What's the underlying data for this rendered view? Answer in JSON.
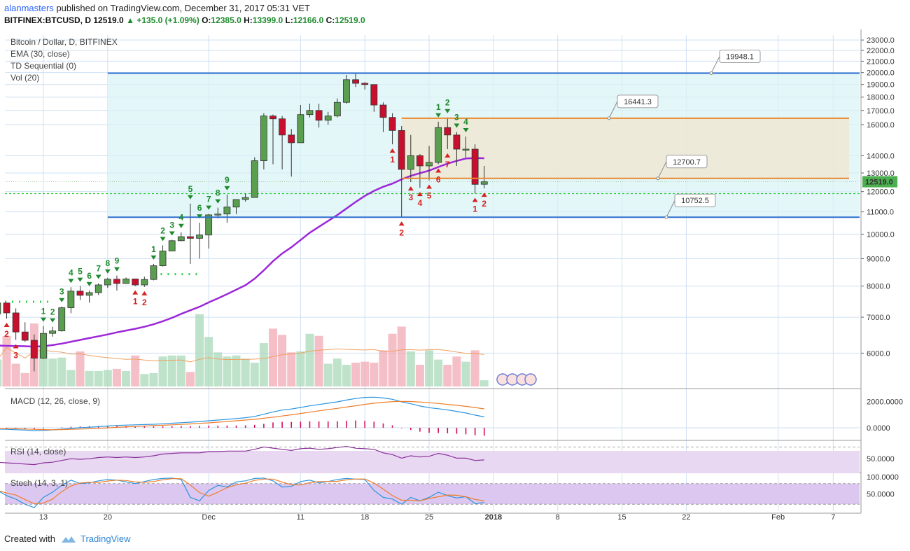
{
  "header": {
    "user": "alanmasters",
    "published_text": "published on TradingView.com, December 31, 2017 05:31 VET",
    "symbol": "BITFINEX:BTCUSD, D",
    "last": "12519.0",
    "change": "+135.0 (+1.09%)",
    "o_label": "O:",
    "o": "12385.0",
    "h_label": "H:",
    "h": "13399.0",
    "l_label": "L:",
    "l": "12166.0",
    "c_label": "C:",
    "c": "12519.0"
  },
  "legend": {
    "title": "Bitcoin / Dollar, D, BITFINEX",
    "ema": "EMA (30, close)",
    "td": "TD Sequential (0)",
    "vol": "Vol (20)"
  },
  "panes": {
    "macd": "MACD (12, 26, close, 9)",
    "rsi": "RSI (14, close)",
    "stoch": "Stoch (14, 3, 1)"
  },
  "footer": {
    "created_with": "Created with",
    "brand": "TradingView"
  },
  "colors": {
    "up": "#5a9e4f",
    "down": "#c8102e",
    "ema": "#9c27d9",
    "hline_blue": "#2f6fcf",
    "hline_orange": "#e8892f",
    "td_green": "#1e8a2e",
    "td_red": "#d62020",
    "macd": "#2a95e0",
    "signal": "#ef7d2a"
  },
  "chart_data": {
    "type": "candlestick",
    "symbol": "BITFINEX:BTCUSD",
    "timeframe": "D",
    "y_axis_scale": "log",
    "ylim": [
      5200,
      23500
    ],
    "y_ticks": [
      "23000.0",
      "22000.0",
      "21000.0",
      "20000.0",
      "19000.0",
      "18000.0",
      "17000.0",
      "16000.0",
      "14000.0",
      "13000.0",
      "12000.0",
      "11000.0",
      "10000.0",
      "9000.0",
      "8000.0",
      "7000.0",
      "6000.0"
    ],
    "last_price_label": "12519.0",
    "x_ticks": [
      "13",
      "20",
      "Dec",
      "11",
      "18",
      "25",
      "2018",
      "8",
      "15",
      "22",
      "Feb",
      "7"
    ],
    "x_tick_dates": [
      "2017-11-13",
      "2017-11-20",
      "2017-12-01",
      "2017-12-11",
      "2017-12-18",
      "2017-12-25",
      "2018-01-01",
      "2018-01-08",
      "2018-01-15",
      "2018-01-22",
      "2018-02-01",
      "2018-02-07"
    ],
    "candles": [
      {
        "date": "2017-11-08",
        "o": 7100,
        "h": 7900,
        "l": 7020,
        "c": 7440
      },
      {
        "date": "2017-11-09",
        "o": 7440,
        "h": 7450,
        "l": 6960,
        "c": 7130
      },
      {
        "date": "2017-11-10",
        "o": 7130,
        "h": 7270,
        "l": 6350,
        "c": 6570
      },
      {
        "date": "2017-11-11",
        "o": 6570,
        "h": 6850,
        "l": 6300,
        "c": 6340
      },
      {
        "date": "2017-11-12",
        "o": 6340,
        "h": 6500,
        "l": 5550,
        "c": 5870
      },
      {
        "date": "2017-11-13",
        "o": 5870,
        "h": 6740,
        "l": 5850,
        "c": 6530
      },
      {
        "date": "2017-11-14",
        "o": 6530,
        "h": 6720,
        "l": 6440,
        "c": 6600
      },
      {
        "date": "2017-11-15",
        "o": 6600,
        "h": 7330,
        "l": 6580,
        "c": 7290
      },
      {
        "date": "2017-11-16",
        "o": 7290,
        "h": 7960,
        "l": 7120,
        "c": 7830
      },
      {
        "date": "2017-11-17",
        "o": 7830,
        "h": 8000,
        "l": 7540,
        "c": 7690
      },
      {
        "date": "2017-11-18",
        "o": 7690,
        "h": 7850,
        "l": 7450,
        "c": 7780
      },
      {
        "date": "2017-11-19",
        "o": 7780,
        "h": 8100,
        "l": 7700,
        "c": 8040
      },
      {
        "date": "2017-11-20",
        "o": 8040,
        "h": 8290,
        "l": 7940,
        "c": 8240
      },
      {
        "date": "2017-11-21",
        "o": 8240,
        "h": 8370,
        "l": 7850,
        "c": 8090
      },
      {
        "date": "2017-11-22",
        "o": 8090,
        "h": 8300,
        "l": 8090,
        "c": 8250
      },
      {
        "date": "2017-11-23",
        "o": 8250,
        "h": 8250,
        "l": 8000,
        "c": 8040
      },
      {
        "date": "2017-11-24",
        "o": 8040,
        "h": 8330,
        "l": 7970,
        "c": 8230
      },
      {
        "date": "2017-11-25",
        "o": 8230,
        "h": 8800,
        "l": 8200,
        "c": 8730
      },
      {
        "date": "2017-11-26",
        "o": 8730,
        "h": 9530,
        "l": 8700,
        "c": 9300
      },
      {
        "date": "2017-11-27",
        "o": 9300,
        "h": 9760,
        "l": 9300,
        "c": 9720
      },
      {
        "date": "2017-11-28",
        "o": 9720,
        "h": 10080,
        "l": 9700,
        "c": 9890
      },
      {
        "date": "2017-11-29",
        "o": 9890,
        "h": 11400,
        "l": 8800,
        "c": 9820
      },
      {
        "date": "2017-11-30",
        "o": 9820,
        "h": 10500,
        "l": 9000,
        "c": 9960
      },
      {
        "date": "2017-12-01",
        "o": 9960,
        "h": 10900,
        "l": 9400,
        "c": 10860
      },
      {
        "date": "2017-12-02",
        "o": 10860,
        "h": 11200,
        "l": 10700,
        "c": 10900
      },
      {
        "date": "2017-12-03",
        "o": 10900,
        "h": 11850,
        "l": 10500,
        "c": 11230
      },
      {
        "date": "2017-12-04",
        "o": 11230,
        "h": 11600,
        "l": 10900,
        "c": 11600
      },
      {
        "date": "2017-12-05",
        "o": 11600,
        "h": 11900,
        "l": 11500,
        "c": 11700
      },
      {
        "date": "2017-12-06",
        "o": 11700,
        "h": 13900,
        "l": 11700,
        "c": 13700
      },
      {
        "date": "2017-12-07",
        "o": 13700,
        "h": 16800,
        "l": 13200,
        "c": 16600
      },
      {
        "date": "2017-12-08",
        "o": 16600,
        "h": 16700,
        "l": 13500,
        "c": 16400
      },
      {
        "date": "2017-12-09",
        "o": 16400,
        "h": 16600,
        "l": 13200,
        "c": 15300
      },
      {
        "date": "2017-12-10",
        "o": 15300,
        "h": 15700,
        "l": 12800,
        "c": 14800
      },
      {
        "date": "2017-12-11",
        "o": 14800,
        "h": 17400,
        "l": 14800,
        "c": 16700
      },
      {
        "date": "2017-12-12",
        "o": 16700,
        "h": 17500,
        "l": 16500,
        "c": 17000
      },
      {
        "date": "2017-12-13",
        "o": 17000,
        "h": 17500,
        "l": 15800,
        "c": 16300
      },
      {
        "date": "2017-12-14",
        "o": 16300,
        "h": 16900,
        "l": 16000,
        "c": 16600
      },
      {
        "date": "2017-12-15",
        "o": 16600,
        "h": 17900,
        "l": 16500,
        "c": 17600
      },
      {
        "date": "2017-12-16",
        "o": 17600,
        "h": 19800,
        "l": 17500,
        "c": 19400
      },
      {
        "date": "2017-12-17",
        "o": 19400,
        "h": 19900,
        "l": 18800,
        "c": 19100
      },
      {
        "date": "2017-12-18",
        "o": 19100,
        "h": 19200,
        "l": 18600,
        "c": 19000
      },
      {
        "date": "2017-12-19",
        "o": 19000,
        "h": 19000,
        "l": 16900,
        "c": 17400
      },
      {
        "date": "2017-12-20",
        "o": 17400,
        "h": 17600,
        "l": 15500,
        "c": 16500
      },
      {
        "date": "2017-12-21",
        "o": 16500,
        "h": 16800,
        "l": 14700,
        "c": 15600
      },
      {
        "date": "2017-12-22",
        "o": 15600,
        "h": 15900,
        "l": 10750,
        "c": 13200
      },
      {
        "date": "2017-12-23",
        "o": 13200,
        "h": 15300,
        "l": 12500,
        "c": 14000
      },
      {
        "date": "2017-12-24",
        "o": 14000,
        "h": 14100,
        "l": 12200,
        "c": 13400
      },
      {
        "date": "2017-12-25",
        "o": 13400,
        "h": 14600,
        "l": 12600,
        "c": 13600
      },
      {
        "date": "2017-12-26",
        "o": 13600,
        "h": 16200,
        "l": 13500,
        "c": 15800
      },
      {
        "date": "2017-12-27",
        "o": 15800,
        "h": 16500,
        "l": 14400,
        "c": 15300
      },
      {
        "date": "2017-12-28",
        "o": 15300,
        "h": 15500,
        "l": 13400,
        "c": 14400
      },
      {
        "date": "2017-12-29",
        "o": 14400,
        "h": 15200,
        "l": 13900,
        "c": 14400
      },
      {
        "date": "2017-12-30",
        "o": 14400,
        "h": 14700,
        "l": 11900,
        "c": 12380
      },
      {
        "date": "2017-12-31",
        "o": 12385,
        "h": 13399,
        "l": 12166,
        "c": 12519
      }
    ],
    "ema30": [
      6200,
      6190,
      6185,
      6180,
      6170,
      6180,
      6210,
      6250,
      6300,
      6350,
      6400,
      6450,
      6500,
      6560,
      6610,
      6660,
      6720,
      6790,
      6880,
      6980,
      7100,
      7210,
      7320,
      7460,
      7590,
      7730,
      7880,
      8030,
      8260,
      8560,
      8900,
      9200,
      9450,
      9750,
      10060,
      10320,
      10580,
      10850,
      11160,
      11480,
      11780,
      12040,
      12250,
      12420,
      12650,
      12840,
      12990,
      13130,
      13340,
      13530,
      13690,
      13830,
      13860,
      13850
    ],
    "volume": [
      2.6,
      4.9,
      2.2,
      1.3,
      6.1,
      4.0,
      2.7,
      2.8,
      1.6,
      3.4,
      1.5,
      1.5,
      1.6,
      1.7,
      1.5,
      3.0,
      1.2,
      1.3,
      2.9,
      3.0,
      3.0,
      1.4,
      7.0,
      4.8,
      3.3,
      2.9,
      3.0,
      2.7,
      2.3,
      4.2,
      5.6,
      5.0,
      3.3,
      3.4,
      5.1,
      4.9,
      2.2,
      2.7,
      2.1,
      2.3,
      2.4,
      2.3,
      3.5,
      5.1,
      5.8,
      3.4,
      2.1,
      3.5,
      2.6,
      2.1,
      2.9,
      2.4,
      3.5,
      0.6
    ],
    "horizontal_levels": [
      {
        "value": 19948.1,
        "label": "19948.1",
        "color": "blue"
      },
      {
        "value": 16441.3,
        "label": "16441.3",
        "color": "orange"
      },
      {
        "value": 12700.7,
        "label": "12700.7",
        "color": "orange"
      },
      {
        "value": 10752.5,
        "label": "10752.5",
        "color": "blue"
      }
    ],
    "td_buy_counts": [
      {
        "date": "2017-11-09",
        "n": "2"
      },
      {
        "date": "2017-11-10",
        "n": "3"
      },
      {
        "date": "2017-12-21",
        "n": "1"
      },
      {
        "date": "2017-12-22",
        "n": "2"
      },
      {
        "date": "2017-12-23",
        "n": "3"
      },
      {
        "date": "2017-12-24",
        "n": "4"
      },
      {
        "date": "2017-12-25",
        "n": "5"
      },
      {
        "date": "2017-12-26",
        "n": "6"
      },
      {
        "date": "2017-12-27",
        "n": "7"
      },
      {
        "date": "2017-12-30",
        "n": "1"
      },
      {
        "date": "2017-12-31",
        "n": "2"
      },
      {
        "date": "2017-11-23",
        "n": "1"
      },
      {
        "date": "2017-11-24",
        "n": "2"
      }
    ],
    "td_sell_counts": [
      {
        "date": "2017-11-13",
        "n": "1"
      },
      {
        "date": "2017-11-14",
        "n": "2"
      },
      {
        "date": "2017-11-15",
        "n": "3"
      },
      {
        "date": "2017-11-16",
        "n": "4"
      },
      {
        "date": "2017-11-17",
        "n": "5"
      },
      {
        "date": "2017-11-18",
        "n": "6"
      },
      {
        "date": "2017-11-19",
        "n": "7"
      },
      {
        "date": "2017-11-20",
        "n": "8"
      },
      {
        "date": "2017-11-21",
        "n": "9"
      },
      {
        "date": "2017-11-25",
        "n": "1"
      },
      {
        "date": "2017-11-26",
        "n": "2"
      },
      {
        "date": "2017-11-27",
        "n": "3"
      },
      {
        "date": "2017-11-28",
        "n": "4"
      },
      {
        "date": "2017-11-29",
        "n": "5"
      },
      {
        "date": "2017-11-30",
        "n": "6"
      },
      {
        "date": "2017-12-01",
        "n": "7"
      },
      {
        "date": "2017-12-02",
        "n": "8"
      },
      {
        "date": "2017-12-03",
        "n": "9"
      },
      {
        "date": "2017-12-26",
        "n": "1"
      },
      {
        "date": "2017-12-27",
        "n": "2"
      },
      {
        "date": "2017-12-28",
        "n": "3"
      },
      {
        "date": "2017-12-29",
        "n": "4"
      }
    ],
    "macd_pane": {
      "y_ticks": [
        "2000.0000",
        "0.0000"
      ],
      "macd": [
        -100,
        -120,
        -150,
        -180,
        -220,
        -200,
        -160,
        -110,
        -50,
        0,
        40,
        80,
        130,
        170,
        200,
        220,
        240,
        260,
        300,
        340,
        380,
        420,
        470,
        530,
        580,
        640,
        700,
        760,
        860,
        1020,
        1200,
        1340,
        1420,
        1540,
        1660,
        1760,
        1860,
        1960,
        2100,
        2220,
        2300,
        2320,
        2260,
        2160,
        1960,
        1820,
        1650,
        1520,
        1440,
        1350,
        1240,
        1120,
        960,
        820
      ],
      "signal": [
        -60,
        -70,
        -80,
        -100,
        -120,
        -140,
        -150,
        -140,
        -120,
        -100,
        -80,
        -50,
        -10,
        30,
        70,
        100,
        130,
        160,
        190,
        220,
        250,
        290,
        330,
        370,
        420,
        470,
        530,
        580,
        640,
        720,
        800,
        890,
        980,
        1080,
        1180,
        1280,
        1380,
        1470,
        1570,
        1670,
        1770,
        1860,
        1930,
        1980,
        2000,
        1990,
        1950,
        1900,
        1840,
        1770,
        1700,
        1620,
        1530,
        1430
      ]
    },
    "rsi_pane": {
      "y_ticks": [
        "50.0000"
      ]
    },
    "stoch_pane": {
      "y_ticks": [
        "100.0000",
        "50.0000"
      ]
    }
  }
}
